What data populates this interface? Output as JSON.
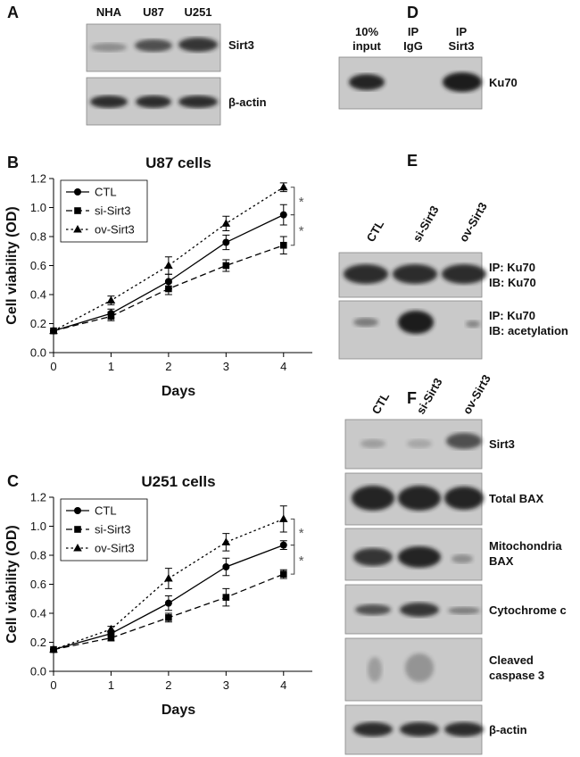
{
  "panels": {
    "A": {
      "letter": "A",
      "lanes": [
        "NHA",
        "U87",
        "U251"
      ],
      "rows": [
        "Sirt3",
        "β-actin"
      ]
    },
    "D": {
      "letter": "D",
      "lanes": [
        [
          "10%",
          "input"
        ],
        [
          "IP",
          "IgG"
        ],
        [
          "IP",
          "Sirt3"
        ]
      ],
      "rows": [
        "Ku70"
      ]
    },
    "E": {
      "letter": "E",
      "lanes": [
        "CTL",
        "si-Sirt3",
        "ov-Sirt3"
      ],
      "rows": [
        [
          "IP: Ku70",
          "IB: Ku70"
        ],
        [
          "IP: Ku70",
          "IB: acetylation"
        ]
      ]
    },
    "F": {
      "letter": "F",
      "lanes": [
        "CTL",
        "si-Sirt3",
        "ov-Sirt3"
      ],
      "rows": [
        "Sirt3",
        "Total BAX",
        [
          "Mitochondria",
          "BAX"
        ],
        "Cytochrome c",
        [
          "Cleaved",
          "caspase 3"
        ],
        "β-actin"
      ]
    }
  },
  "chart_data": [
    {
      "type": "line",
      "panel_label": "B",
      "title": "U87 cells",
      "x_label": "Days",
      "y_label": "Cell viability (OD)",
      "x": [
        0,
        1,
        2,
        3,
        4
      ],
      "xlim": [
        0,
        4.5
      ],
      "xticks": [
        0,
        1,
        2,
        3,
        4
      ],
      "ylim": [
        0,
        1.2
      ],
      "yticks": [
        {
          "value": 0,
          "label": "0.0"
        },
        0.2,
        0.4,
        0.6,
        0.8,
        {
          "value": 1,
          "label": "1.0"
        },
        1.2
      ],
      "legend": "upper left",
      "series": [
        {
          "name": "CTL",
          "color": "#000000",
          "linestyle": "solid",
          "marker": "circle",
          "values": [
            0.15,
            0.27,
            0.49,
            0.76,
            0.95
          ],
          "errors": [
            0,
            0.03,
            0.05,
            0.05,
            0.07
          ]
        },
        {
          "name": "si-Sirt3",
          "color": "#000000",
          "linestyle": "dashed",
          "marker": "square",
          "values": [
            0.15,
            0.25,
            0.44,
            0.6,
            0.74
          ],
          "errors": [
            0,
            0.03,
            0.04,
            0.04,
            0.06
          ]
        },
        {
          "name": "ov-Sirt3",
          "color": "#000000",
          "linestyle": "dotted",
          "marker": "triangle",
          "values": [
            0.15,
            0.36,
            0.6,
            0.89,
            1.14
          ],
          "errors": [
            0,
            0.03,
            0.06,
            0.05,
            0.03
          ]
        }
      ],
      "annotations": [
        "*",
        "*"
      ]
    },
    {
      "type": "line",
      "panel_label": "C",
      "title": "U251 cells",
      "x_label": "Days",
      "y_label": "Cell viability (OD)",
      "x": [
        0,
        1,
        2,
        3,
        4
      ],
      "xlim": [
        0,
        4.5
      ],
      "xticks": [
        0,
        1,
        2,
        3,
        4
      ],
      "ylim": [
        0,
        1.2
      ],
      "yticks": [
        {
          "value": 0,
          "label": "0.0"
        },
        0.2,
        0.4,
        0.6,
        0.8,
        {
          "value": 1,
          "label": "1.0"
        },
        1.2
      ],
      "legend": "upper left",
      "series": [
        {
          "name": "CTL",
          "color": "#000000",
          "linestyle": "solid",
          "marker": "circle",
          "values": [
            0.15,
            0.26,
            0.47,
            0.72,
            0.87
          ],
          "errors": [
            0,
            0.02,
            0.05,
            0.06,
            0.03
          ]
        },
        {
          "name": "si-Sirt3",
          "color": "#000000",
          "linestyle": "dashed",
          "marker": "square",
          "values": [
            0.15,
            0.23,
            0.37,
            0.51,
            0.67
          ],
          "errors": [
            0,
            0.02,
            0.03,
            0.06,
            0.03
          ]
        },
        {
          "name": "ov-Sirt3",
          "color": "#000000",
          "linestyle": "dotted",
          "marker": "triangle",
          "values": [
            0.15,
            0.29,
            0.64,
            0.89,
            1.05
          ],
          "errors": [
            0,
            0.02,
            0.07,
            0.06,
            0.09
          ]
        }
      ],
      "annotations": [
        "*",
        "*"
      ]
    }
  ]
}
